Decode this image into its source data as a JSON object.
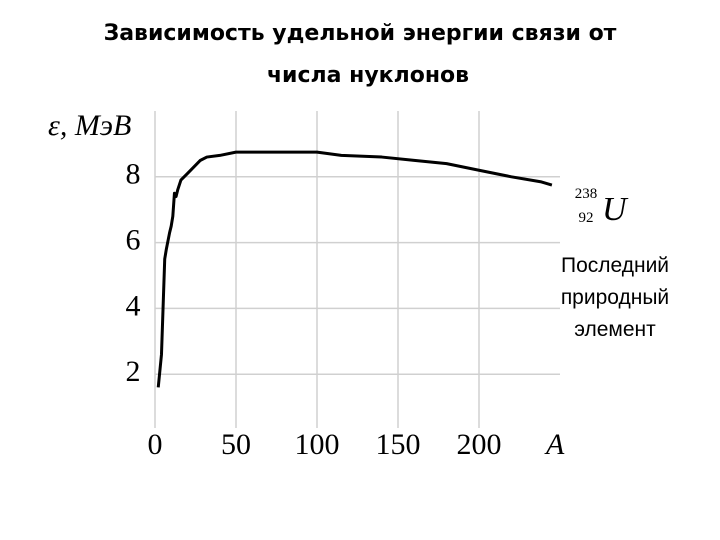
{
  "chart_data": {
    "type": "line",
    "title": [
      "Зависимость удельной энергии связи от",
      "числа нуклонов"
    ],
    "y_label": "ε, МэВ",
    "x_label": "A",
    "x": [
      2,
      4,
      6,
      7,
      9,
      10,
      11,
      12,
      13,
      14,
      16,
      20,
      24,
      28,
      32,
      40,
      50,
      60,
      80,
      100,
      115,
      140,
      160,
      180,
      200,
      220,
      238,
      245
    ],
    "series": [
      {
        "name": null,
        "color": "#000000",
        "values": [
          1.6,
          2.6,
          5.5,
          5.8,
          6.3,
          6.5,
          6.8,
          7.5,
          7.4,
          7.6,
          7.9,
          8.1,
          8.3,
          8.5,
          8.6,
          8.65,
          8.75,
          8.75,
          8.75,
          8.75,
          8.65,
          8.6,
          8.5,
          8.4,
          8.2,
          8.0,
          7.85,
          7.75
        ]
      }
    ],
    "xlim": [
      0,
      250
    ],
    "xticks": [
      0,
      50,
      100,
      150,
      200
    ],
    "ylim": [
      0,
      10
    ],
    "yticks": [
      2,
      4,
      6,
      8
    ],
    "grid": true,
    "nuclide": {
      "mass": "238",
      "charge": "92",
      "symbol": "U"
    },
    "note": [
      "Последний",
      "природный",
      "элемент"
    ]
  }
}
